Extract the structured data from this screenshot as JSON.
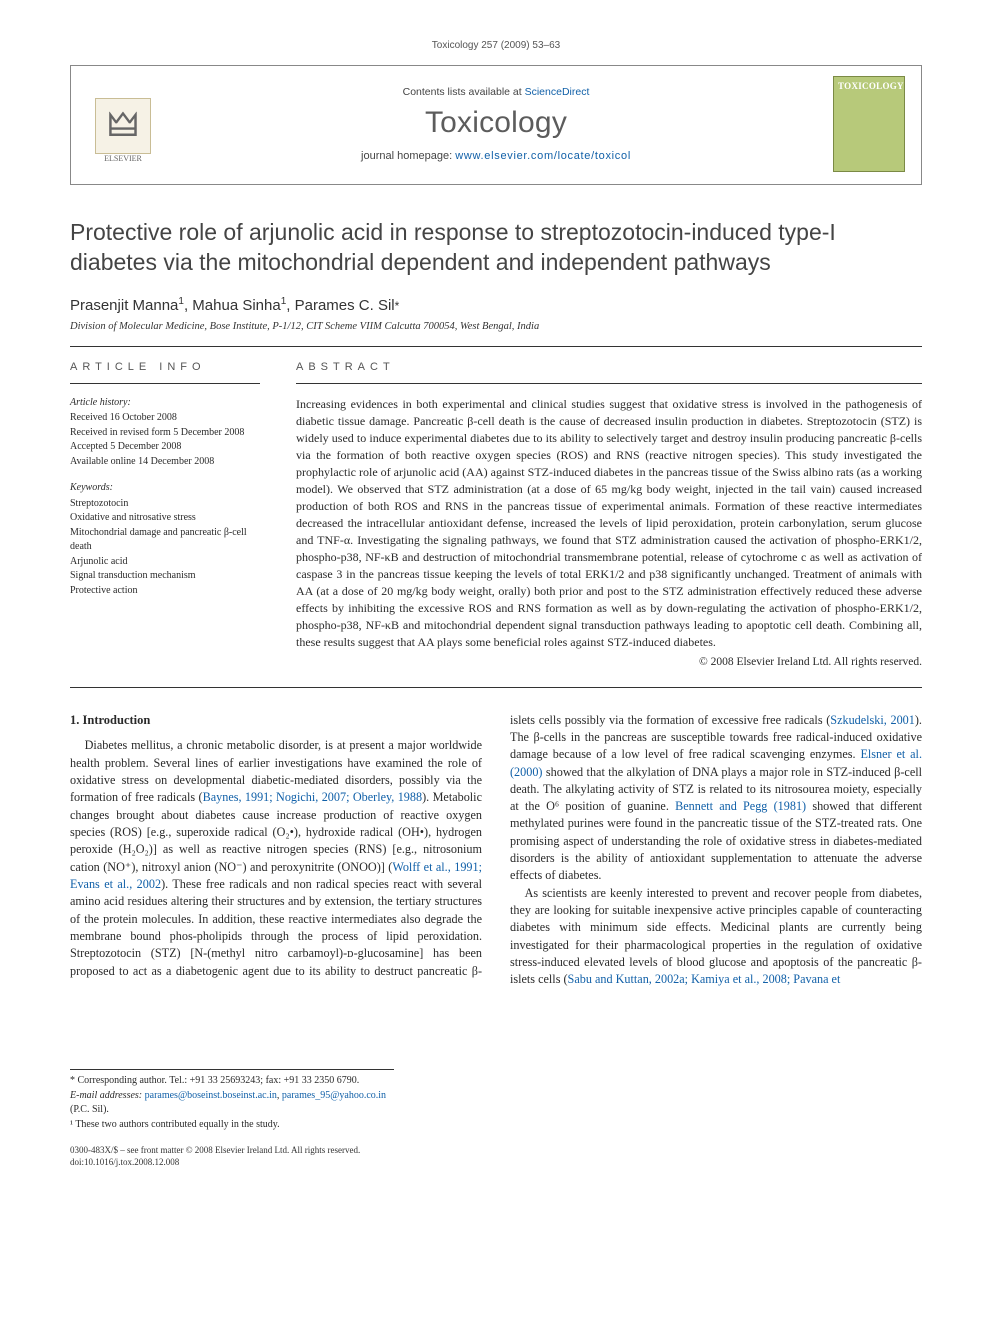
{
  "running_head": "Toxicology 257 (2009) 53–63",
  "header": {
    "contents_prefix": "Contents lists available at ",
    "contents_link": "ScienceDirect",
    "journal": "Toxicology",
    "homepage_prefix": "journal homepage: ",
    "homepage_url": "www.elsevier.com/locate/toxicol",
    "publisher_logo_label": "ELSEVIER",
    "cover_label": "TOXICOLOGY"
  },
  "title": "Protective role of arjunolic acid in response to streptozotocin-induced type-I diabetes via the mitochondrial dependent and independent pathways",
  "authors_html": "Prasenjit Manna<sup>1</sup>, Mahua Sinha<sup>1</sup>, Parames C. Sil<span class='corr'>*</span>",
  "affiliation": "Division of Molecular Medicine, Bose Institute, P-1/12, CIT Scheme VIIM Calcutta 700054, West Bengal, India",
  "info": {
    "heading": "article info",
    "history_head": "Article history:",
    "history": [
      "Received 16 October 2008",
      "Received in revised form 5 December 2008",
      "Accepted 5 December 2008",
      "Available online 14 December 2008"
    ],
    "keywords_head": "Keywords:",
    "keywords": [
      "Streptozotocin",
      "Oxidative and nitrosative stress",
      "Mitochondrial damage and pancreatic β-cell death",
      "Arjunolic acid",
      "Signal transduction mechanism",
      "Protective action"
    ]
  },
  "abstract": {
    "heading": "abstract",
    "text": "Increasing evidences in both experimental and clinical studies suggest that oxidative stress is involved in the pathogenesis of diabetic tissue damage. Pancreatic β-cell death is the cause of decreased insulin production in diabetes. Streptozotocin (STZ) is widely used to induce experimental diabetes due to its ability to selectively target and destroy insulin producing pancreatic β-cells via the formation of both reactive oxygen species (ROS) and RNS (reactive nitrogen species). This study investigated the prophylactic role of arjunolic acid (AA) against STZ-induced diabetes in the pancreas tissue of the Swiss albino rats (as a working model). We observed that STZ administration (at a dose of 65 mg/kg body weight, injected in the tail vain) caused increased production of both ROS and RNS in the pancreas tissue of experimental animals. Formation of these reactive intermediates decreased the intracellular antioxidant defense, increased the levels of lipid peroxidation, protein carbonylation, serum glucose and TNF-α. Investigating the signaling pathways, we found that STZ administration caused the activation of phospho-ERK1/2, phospho-p38, NF-κB and destruction of mitochondrial transmembrane potential, release of cytochrome c as well as activation of caspase 3 in the pancreas tissue keeping the levels of total ERK1/2 and p38 significantly unchanged. Treatment of animals with AA (at a dose of 20 mg/kg body weight, orally) both prior and post to the STZ administration effectively reduced these adverse effects by inhibiting the excessive ROS and RNS formation as well as by down-regulating the activation of phospho-ERK1/2, phospho-p38, NF-κB and mitochondrial dependent signal transduction pathways leading to apoptotic cell death. Combining all, these results suggest that AA plays some beneficial roles against STZ-induced diabetes.",
    "copyright": "© 2008 Elsevier Ireland Ltd. All rights reserved."
  },
  "body": {
    "section_num": "1.",
    "section_title": "Introduction",
    "col1_p1_a": "Diabetes mellitus, a chronic metabolic disorder, is at present a major worldwide health problem. Several lines of earlier investigations have examined the role of oxidative stress on developmental diabetic-mediated disorders, possibly via the formation of free radicals (",
    "cite1": "Baynes, 1991; Nogichi, 2007; Oberley, 1988",
    "col1_p1_b": "). Metabolic changes brought about diabetes cause increase production of reactive oxygen species (ROS) [e.g., superoxide radical (O₂•), hydroxide radical (OH•), hydrogen peroxide (H₂O₂)] as well as reactive nitrogen species (RNS) [e.g., nitrosonium cation (NO⁺), nitroxyl anion (NO⁻) and peroxynitrite (ONOO)] (",
    "cite2": "Wolff et al., 1991; Evans et al., 2002",
    "col1_p1_c": "). These free radicals and non radical species react with several amino acid residues altering their structures and by extension, the tertiary structures of the protein molecules. In addition, these reactive intermediates also degrade the membrane bound phos-",
    "col2_p1_a": "pholipids through the process of lipid peroxidation. Streptozotocin (STZ) [N-(methyl nitro carbamoyl)-ᴅ-glucosamine] has been proposed to act as a diabetogenic agent due to its ability to destruct pancreatic β-islets cells possibly via the formation of excessive free radicals (",
    "cite3": "Szkudelski, 2001",
    "col2_p1_b": "). The β-cells in the pancreas are susceptible towards free radical-induced oxidative damage because of a low level of free radical scavenging enzymes. ",
    "cite4": "Elsner et al. (2000)",
    "col2_p1_c": " showed that the alkylation of DNA plays a major role in STZ-induced β-cell death. The alkylating activity of STZ is related to its nitrosourea moiety, especially at the O⁶ position of guanine. ",
    "cite5": "Bennett and Pegg (1981)",
    "col2_p1_d": " showed that different methylated purines were found in the pancreatic tissue of the STZ-treated rats. One promising aspect of understanding the role of oxidative stress in diabetes-mediated disorders is the ability of antioxidant supplementation to attenuate the adverse effects of diabetes.",
    "col2_p2_a": "As scientists are keenly interested to prevent and recover people from diabetes, they are looking for suitable inexpensive active principles capable of counteracting diabetes with minimum side effects. Medicinal plants are currently being investigated for their pharmacological properties in the regulation of oxidative stress-induced elevated levels of blood glucose and apoptosis of the pancreatic β-islets cells (",
    "cite6": "Sabu and Kuttan, 2002a; Kamiya et al., 2008; Pavana et"
  },
  "footnotes": {
    "corr": "* Corresponding author. Tel.: +91 33 25693243; fax: +91 33 2350 6790.",
    "email_label": "E-mail addresses:",
    "email1": "parames@boseinst.boseinst.ac.in",
    "email_sep": ", ",
    "email2": "parames_95@yahoo.co.in",
    "email_tail": " (P.C. Sil).",
    "note1": "¹ These two authors contributed equally in the study."
  },
  "docfoot": {
    "line1": "0300-483X/$ – see front matter © 2008 Elsevier Ireland Ltd. All rights reserved.",
    "line2": "doi:10.1016/j.tox.2008.12.008"
  },
  "colors": {
    "link": "#1160a8",
    "text": "#2a2a2a",
    "rule": "#333333",
    "cover_bg": "#b7c97a"
  }
}
